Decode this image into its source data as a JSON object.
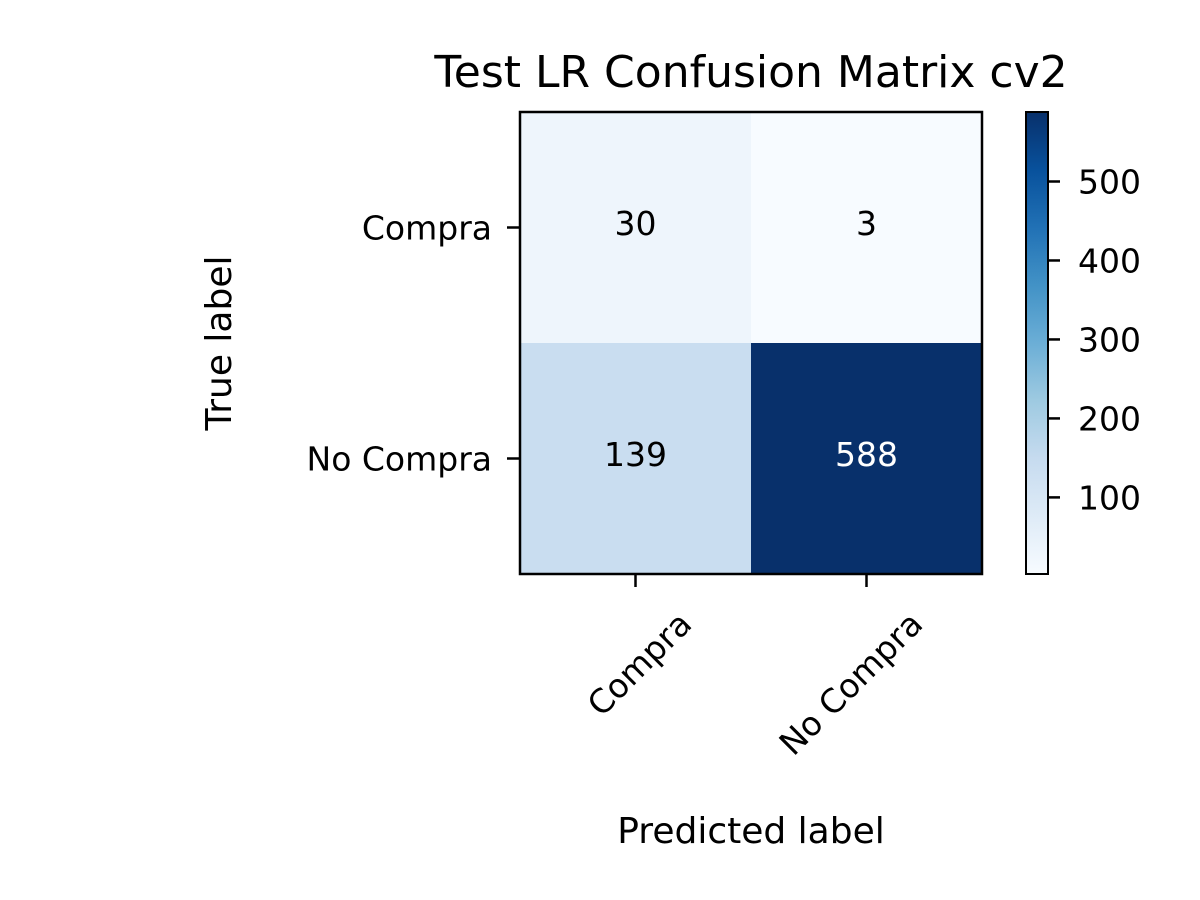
{
  "chart_data": {
    "type": "heatmap",
    "title": "Test LR Confusion Matrix cv2",
    "xlabel": "Predicted label",
    "ylabel": "True label",
    "x_categories": [
      "Compra",
      "No Compra"
    ],
    "y_categories": [
      "Compra",
      "No Compra"
    ],
    "values": [
      [
        30,
        3
      ],
      [
        139,
        588
      ]
    ],
    "value_labels": [
      [
        "30",
        "3"
      ],
      [
        "139",
        "588"
      ]
    ],
    "colormap": "Blues",
    "color_low": "#f7fbff",
    "color_high": "#08306b",
    "label_color_dark": "#000000",
    "label_color_light": "#ffffff",
    "colorbar": {
      "range": [
        3,
        588
      ],
      "ticks": [
        100,
        200,
        300,
        400,
        500
      ],
      "tick_labels": [
        "100",
        "200",
        "300",
        "400",
        "500"
      ]
    },
    "grid": false,
    "legend": "colorbar-right"
  }
}
